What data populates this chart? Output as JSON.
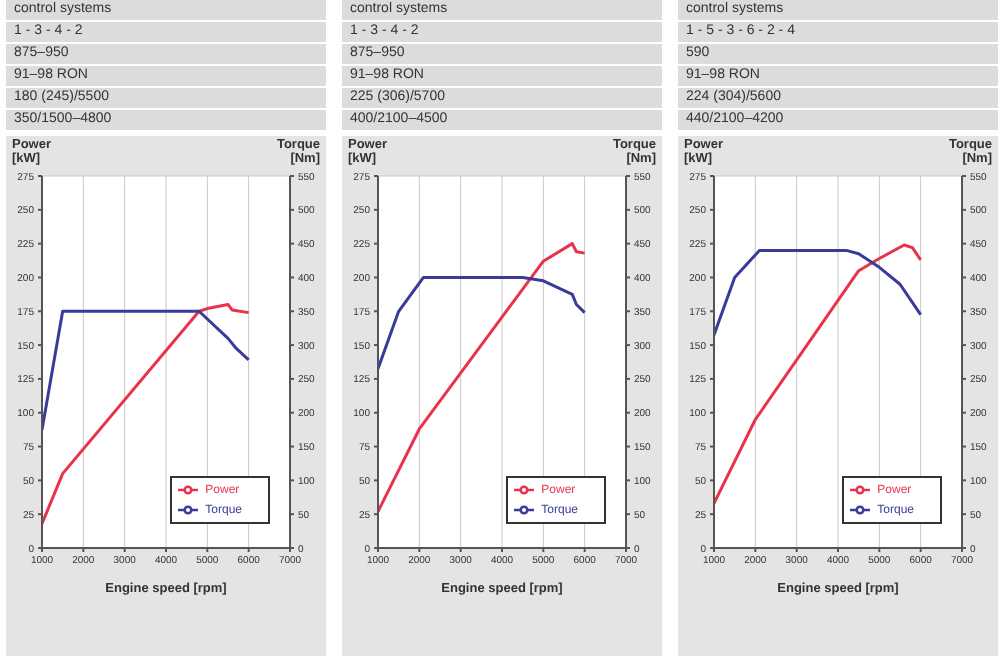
{
  "chart_data": [
    {
      "type": "line",
      "annotations": [
        "control systems",
        "1 - 3 - 4 - 2",
        "875–950",
        "91–98 RON",
        "180 (245)/5500",
        "350/1500–4800"
      ],
      "xlabel": "Engine speed\n[rpm]",
      "ylabel": "Power\n[kW]",
      "y2label": "Torque\n[Nm]",
      "xlim": [
        1000,
        7000
      ],
      "xticks": [
        1000,
        2000,
        3000,
        4000,
        5000,
        6000,
        7000
      ],
      "ylim": [
        0,
        275
      ],
      "yticks": [
        0,
        25,
        50,
        75,
        100,
        125,
        150,
        175,
        200,
        225,
        250,
        275
      ],
      "y2lim": [
        0,
        550
      ],
      "y2ticks": [
        0,
        50,
        100,
        150,
        200,
        250,
        300,
        350,
        400,
        450,
        500,
        550
      ],
      "grid": true,
      "legend": "bottom right",
      "series": [
        {
          "name": "Power",
          "color": "#e8334a",
          "x": [
            1000,
            1500,
            4800,
            5000,
            5500,
            5600,
            6000
          ],
          "values": [
            18,
            55,
            175,
            177,
            180,
            176,
            174
          ]
        },
        {
          "name": "Torque",
          "color": "#3a3a9a",
          "axis": "y2",
          "x": [
            1000,
            1500,
            4800,
            5500,
            5700,
            6000
          ],
          "values": [
            175,
            350,
            350,
            310,
            295,
            278
          ]
        }
      ]
    },
    {
      "type": "line",
      "annotations": [
        "control systems",
        "1 - 3 - 4 - 2",
        "875–950",
        "91–98 RON",
        "225 (306)/5700",
        "400/2100–4500"
      ],
      "xlabel": "Engine speed\n[rpm]",
      "ylabel": "Power\n[kW]",
      "y2label": "Torque\n[Nm]",
      "xlim": [
        1000,
        7000
      ],
      "xticks": [
        1000,
        2000,
        3000,
        4000,
        5000,
        6000,
        7000
      ],
      "ylim": [
        0,
        275
      ],
      "yticks": [
        0,
        25,
        50,
        75,
        100,
        125,
        150,
        175,
        200,
        225,
        250,
        275
      ],
      "y2lim": [
        0,
        550
      ],
      "y2ticks": [
        0,
        50,
        100,
        150,
        200,
        250,
        300,
        350,
        400,
        450,
        500,
        550
      ],
      "grid": true,
      "legend": "bottom right",
      "series": [
        {
          "name": "Power",
          "color": "#e8334a",
          "x": [
            1000,
            2000,
            5000,
            5700,
            5800,
            6000
          ],
          "values": [
            27,
            88,
            212,
            225,
            219,
            218
          ]
        },
        {
          "name": "Torque",
          "color": "#3a3a9a",
          "axis": "y2",
          "x": [
            1000,
            1500,
            2100,
            4500,
            5000,
            5700,
            5800,
            6000
          ],
          "values": [
            265,
            350,
            400,
            400,
            395,
            375,
            360,
            348
          ]
        }
      ]
    },
    {
      "type": "line",
      "annotations": [
        "control systems",
        "1 - 5 - 3 - 6 - 2 - 4",
        "590",
        "91–98 RON",
        "224 (304)/5600",
        "440/2100–4200"
      ],
      "xlabel": "Engine speed\n[rpm]",
      "ylabel": "Power\n[kW]",
      "y2label": "Torque\n[Nm]",
      "xlim": [
        1000,
        7000
      ],
      "xticks": [
        1000,
        2000,
        3000,
        4000,
        5000,
        6000,
        7000
      ],
      "ylim": [
        0,
        275
      ],
      "yticks": [
        0,
        25,
        50,
        75,
        100,
        125,
        150,
        175,
        200,
        225,
        250,
        275
      ],
      "y2lim": [
        0,
        550
      ],
      "y2ticks": [
        0,
        50,
        100,
        150,
        200,
        250,
        300,
        350,
        400,
        450,
        500,
        550
      ],
      "grid": true,
      "legend": "bottom right",
      "series": [
        {
          "name": "Power",
          "color": "#e8334a",
          "x": [
            1000,
            2000,
            4500,
            5000,
            5600,
            5800,
            6000
          ],
          "values": [
            33,
            95,
            205,
            214,
            224,
            222,
            213
          ]
        },
        {
          "name": "Torque",
          "color": "#3a3a9a",
          "axis": "y2",
          "x": [
            1000,
            1500,
            2100,
            4200,
            4500,
            5000,
            5500,
            6000
          ],
          "values": [
            315,
            400,
            440,
            440,
            435,
            415,
            390,
            345
          ]
        }
      ]
    }
  ]
}
